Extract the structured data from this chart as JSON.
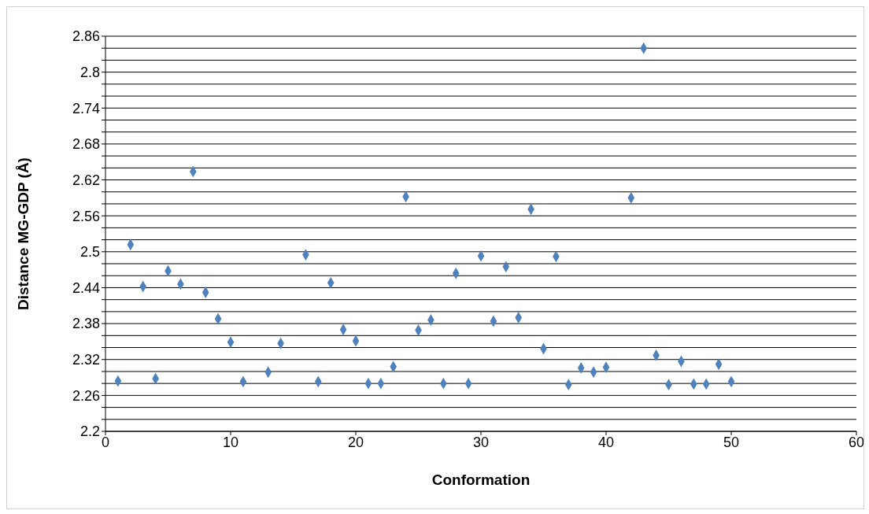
{
  "chart_data": {
    "type": "scatter",
    "xlabel": "Conformation",
    "ylabel": "Distance MG-GDP (Å)",
    "x": [
      1,
      2,
      3,
      4,
      5,
      6,
      7,
      8,
      9,
      10,
      11,
      13,
      14,
      16,
      17,
      18,
      19,
      20,
      21,
      22,
      23,
      24,
      25,
      26,
      27,
      28,
      29,
      30,
      31,
      32,
      33,
      34,
      35,
      36,
      37,
      38,
      39,
      40,
      42,
      43,
      44,
      45,
      46,
      47,
      48,
      49,
      50
    ],
    "series": [
      {
        "color": "#4f81bd",
        "values": [
          2.284,
          2.512,
          2.442,
          2.288,
          2.468,
          2.446,
          2.634,
          2.432,
          2.388,
          2.349,
          2.283,
          2.299,
          2.347,
          2.495,
          2.283,
          2.448,
          2.37,
          2.351,
          2.28,
          2.28,
          2.308,
          2.592,
          2.369,
          2.386,
          2.28,
          2.464,
          2.28,
          2.493,
          2.384,
          2.475,
          2.39,
          2.571,
          2.338,
          2.492,
          2.278,
          2.306,
          2.299,
          2.307,
          2.59,
          2.84,
          2.327,
          2.278,
          2.317,
          2.279,
          2.279,
          2.312,
          2.283
        ]
      }
    ],
    "xlim": [
      0,
      60
    ],
    "xticks": [
      0,
      10,
      20,
      30,
      40,
      50,
      60
    ],
    "ylim": [
      2.2,
      2.86
    ],
    "yticks": [
      2.2,
      {
        "value": 2.22,
        "label": null
      },
      {
        "value": 2.24,
        "label": null
      },
      2.26,
      {
        "value": 2.28,
        "label": null
      },
      {
        "value": 2.3,
        "label": null
      },
      2.32,
      {
        "value": 2.34,
        "label": null
      },
      {
        "value": 2.36,
        "label": null
      },
      2.38,
      {
        "value": 2.4,
        "label": null
      },
      {
        "value": 2.42,
        "label": null
      },
      2.44,
      {
        "value": 2.46,
        "label": null
      },
      {
        "value": 2.48,
        "label": null
      },
      2.5,
      {
        "value": 2.52,
        "label": null
      },
      {
        "value": 2.54,
        "label": null
      },
      2.56,
      {
        "value": 2.58,
        "label": null
      },
      {
        "value": 2.6,
        "label": null
      },
      2.62,
      {
        "value": 2.64,
        "label": null
      },
      {
        "value": 2.66,
        "label": null
      },
      2.68,
      {
        "value": 2.7,
        "label": null
      },
      {
        "value": 2.72,
        "label": null
      },
      2.74,
      {
        "value": 2.76,
        "label": null
      },
      {
        "value": 2.78,
        "label": null
      },
      2.8,
      {
        "value": 2.82,
        "label": null
      },
      {
        "value": 2.84,
        "label": null
      },
      2.86
    ],
    "grid": "y",
    "marker": "diamond",
    "legend": false
  }
}
